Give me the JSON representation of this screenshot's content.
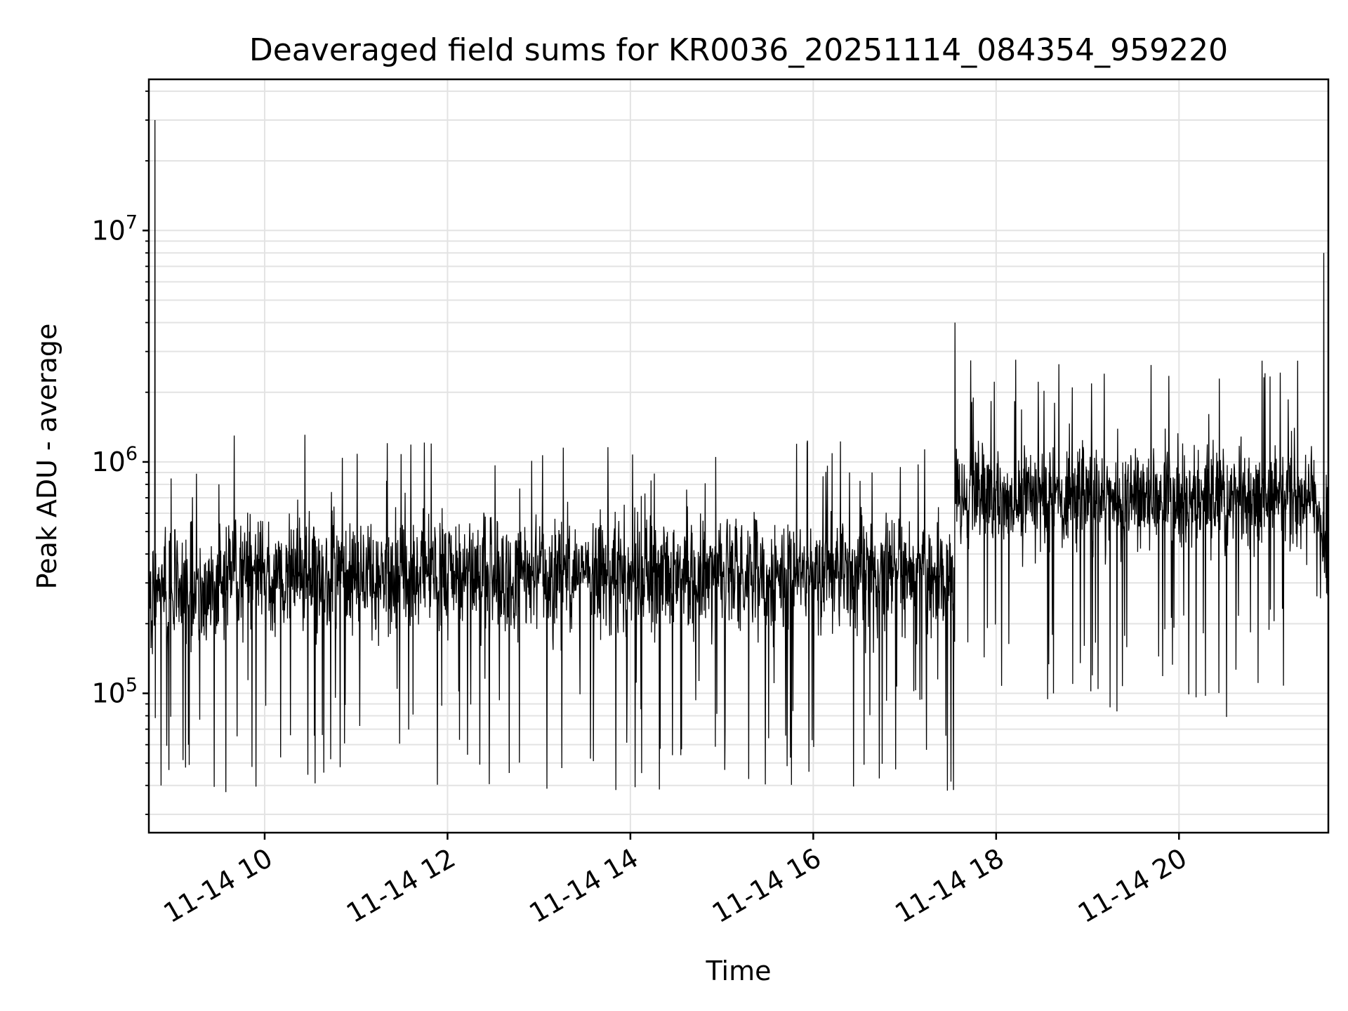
{
  "chart_data": {
    "type": "line",
    "title": "Deaveraged field sums for KR0036_20251114_084354_959220",
    "xlabel": "Time",
    "ylabel": "Peak ADU - average",
    "yscale": "log",
    "xlim": [
      "2025-11-14 08:44",
      "2025-11-14 21:38"
    ],
    "ylim": [
      25000,
      45000000
    ],
    "grid": true,
    "x_ticks": [
      "11-14 10",
      "11-14 12",
      "11-14 14",
      "11-14 16",
      "11-14 18",
      "11-14 20"
    ],
    "y_ticks": [
      {
        "value": 100000,
        "base": "10",
        "exp": "5"
      },
      {
        "value": 1000000,
        "base": "10",
        "exp": "6"
      },
      {
        "value": 10000000,
        "base": "10",
        "exp": "7"
      }
    ],
    "series": [
      {
        "color": "#000000",
        "points": [
          [
            "2025-11-14 08:44",
            300000
          ],
          [
            "2025-11-14 08:48",
            30000000
          ],
          [
            "2025-11-14 08:52",
            40000
          ],
          [
            "2025-11-14 09:00",
            220000
          ],
          [
            "2025-11-14 09:10",
            60000
          ],
          [
            "2025-11-14 09:20",
            300000
          ],
          [
            "2025-11-14 09:30",
            800000
          ],
          [
            "2025-11-14 09:40",
            1300000
          ],
          [
            "2025-11-14 09:50",
            500000
          ],
          [
            "2025-11-14 10:00",
            380000
          ],
          [
            "2025-11-14 10:30",
            340000
          ],
          [
            "2025-11-14 11:00",
            330000
          ],
          [
            "2025-11-14 11:30",
            320000
          ],
          [
            "2025-11-14 12:00",
            330000
          ],
          [
            "2025-11-14 12:30",
            340000
          ],
          [
            "2025-11-14 13:00",
            340000
          ],
          [
            "2025-11-14 13:30",
            340000
          ],
          [
            "2025-11-14 14:00",
            330000
          ],
          [
            "2025-11-14 14:30",
            300000
          ],
          [
            "2025-11-14 14:56",
            1050000
          ],
          [
            "2025-11-14 15:00",
            290000
          ],
          [
            "2025-11-14 15:30",
            300000
          ],
          [
            "2025-11-14 16:00",
            310000
          ],
          [
            "2025-11-14 16:30",
            300000
          ],
          [
            "2025-11-14 17:00",
            290000
          ],
          [
            "2025-11-14 17:20",
            300000
          ],
          [
            "2025-11-14 17:28",
            38000
          ],
          [
            "2025-11-14 17:33",
            4000000
          ],
          [
            "2025-11-14 17:40",
            700000
          ],
          [
            "2025-11-14 18:00",
            750000
          ],
          [
            "2025-11-14 18:30",
            780000
          ],
          [
            "2025-11-14 18:50",
            2100000
          ],
          [
            "2025-11-14 19:00",
            850000
          ],
          [
            "2025-11-14 19:30",
            620000
          ],
          [
            "2025-11-14 20:00",
            560000
          ],
          [
            "2025-11-14 20:30",
            450000
          ],
          [
            "2025-11-14 21:00",
            230000
          ],
          [
            "2025-11-14 21:20",
            420000
          ],
          [
            "2025-11-14 21:35",
            8000000
          ],
          [
            "2025-11-14 21:38",
            480000
          ]
        ]
      }
    ]
  }
}
